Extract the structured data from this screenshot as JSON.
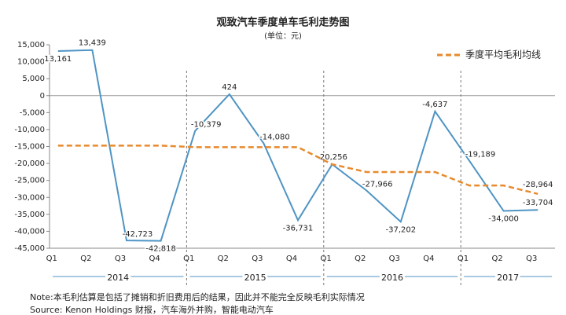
{
  "chart_data": {
    "type": "line",
    "title": "观致汽车季度单车毛利走势图",
    "subtitle": "(单位：元)",
    "categories": [
      "Q1",
      "Q2",
      "Q3",
      "Q4",
      "Q1",
      "Q2",
      "Q3",
      "Q4",
      "Q1",
      "Q2",
      "Q3",
      "Q4",
      "Q1",
      "Q2",
      "Q3"
    ],
    "groups": [
      "2014",
      "2015",
      "2016",
      "2017"
    ],
    "series": [
      {
        "name": null,
        "color": "#4f94c4",
        "values": [
          13161,
          13439,
          -42723,
          -42818,
          -10379,
          424,
          -14080,
          -36731,
          -20256,
          -27966,
          -37202,
          -4637,
          -19189,
          -34000,
          -33704
        ],
        "value_labels": [
          "13,161",
          "13,439",
          "-42,723",
          "-42,818",
          "-10,379",
          "424",
          "-14,080",
          "-36,731",
          "-20,256",
          "-27,966",
          "-37,202",
          "-4,637",
          "-19,189",
          "-34,000",
          "-33,704"
        ]
      },
      {
        "name": "季度平均毛利均线",
        "color": "#e88a2d",
        "dashed": true,
        "values": [
          -14735,
          -14735,
          -14735,
          -14735,
          -15192,
          -15192,
          -15192,
          -15192,
          -20256,
          -22515,
          -22515,
          -22515,
          -26500,
          -26500,
          -28964
        ],
        "value_labels": [
          null,
          null,
          null,
          null,
          null,
          null,
          null,
          null,
          null,
          null,
          null,
          null,
          null,
          null,
          "-28,964"
        ]
      }
    ],
    "ylim": [
      -45000,
      15000
    ],
    "yticks": [
      {
        "value": -45000,
        "label": "-45,000"
      },
      {
        "value": -40000,
        "label": "-40,000"
      },
      {
        "value": -35000,
        "label": "-35,000"
      },
      {
        "value": -30000,
        "label": "-30,000"
      },
      {
        "value": -25000,
        "label": "-25,000"
      },
      {
        "value": -20000,
        "label": "-20,000"
      },
      {
        "value": -15000,
        "label": "-15,000"
      },
      {
        "value": -10000,
        "label": "-10,000"
      },
      {
        "value": -5000,
        "label": "-5,000"
      },
      0,
      {
        "value": 5000,
        "label": "5,000"
      },
      {
        "value": 10000,
        "label": "10,000"
      },
      {
        "value": 15000,
        "label": "15,000"
      }
    ],
    "note": "Note:本毛利估算是包括了摊销和折旧费用后的结果，因此并不能完全反映毛利实际情况",
    "source": "Source: Kenon Holdings 财报，汽车海外并购，智能电动汽车"
  }
}
